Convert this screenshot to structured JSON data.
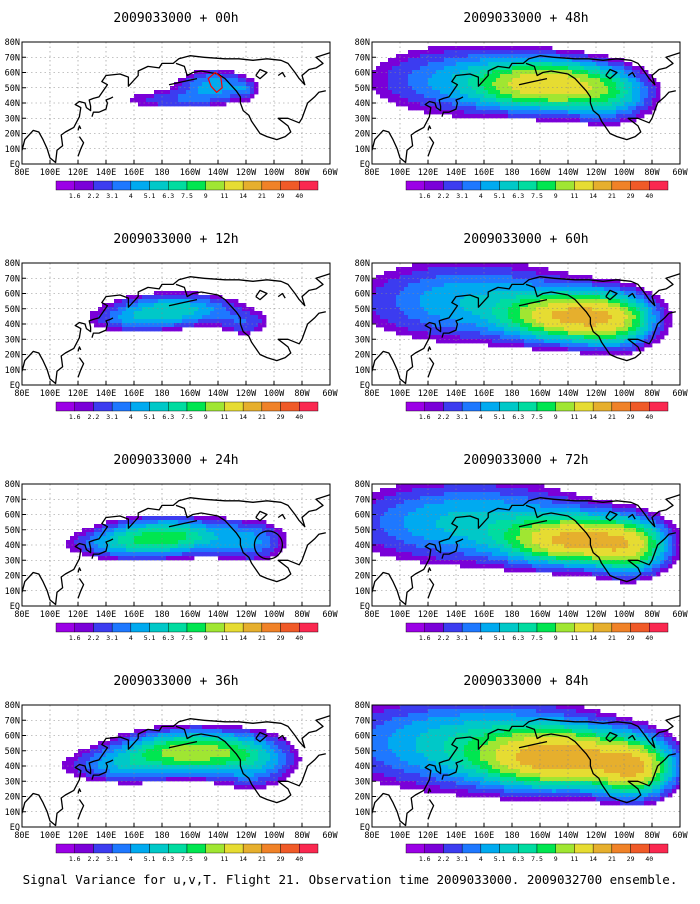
{
  "chart_data": {
    "type": "heatmap",
    "caption": "Signal Variance for u,v,T. Flight 21. Observation time 2009033000. 2009032700 ensemble.",
    "x_tick_labels": [
      "80E",
      "100E",
      "120E",
      "140E",
      "160E",
      "180",
      "160W",
      "140W",
      "120W",
      "100W",
      "80W",
      "60W"
    ],
    "y_tick_labels": [
      "EQ",
      "10N",
      "20N",
      "30N",
      "40N",
      "50N",
      "60N",
      "70N",
      "80N"
    ],
    "colorbar_levels": [
      "1.6",
      "2.2",
      "3.1",
      "4",
      "5.1",
      "6.3",
      "7.5",
      "9",
      "11",
      "14",
      "21",
      "29",
      "40"
    ],
    "colorbar_colors": [
      "#9b00e6",
      "#7a00d8",
      "#3c3cf0",
      "#1e78ff",
      "#00aaf0",
      "#00c8c8",
      "#00dca0",
      "#00e650",
      "#a0e632",
      "#e6dc32",
      "#e6af2d",
      "#f08228",
      "#f05a28",
      "#fa2850"
    ],
    "colors": {
      "land_outline": "#000000",
      "grid": "#888888",
      "marker_red": "#ff0000"
    },
    "panels": [
      {
        "title": "2009033000 + 00h",
        "lead_hours": 0,
        "col": 0,
        "row": 0,
        "blobs": [
          {
            "lon": 218,
            "lat": 52,
            "sx": 18,
            "sy": 7,
            "amp": 4.5
          },
          {
            "lon": 185,
            "lat": 42,
            "sx": 28,
            "sy": 5,
            "amp": 2.6
          },
          {
            "lon": 240,
            "lat": 48,
            "sx": 6,
            "sy": 4,
            "amp": 1.9
          }
        ]
      },
      {
        "title": "2009033000 + 12h",
        "lead_hours": 12,
        "col": 0,
        "row": 1,
        "blobs": [
          {
            "lon": 190,
            "lat": 50,
            "sx": 30,
            "sy": 7,
            "amp": 5.5
          },
          {
            "lon": 160,
            "lat": 42,
            "sx": 25,
            "sy": 6,
            "amp": 2.8
          },
          {
            "lon": 240,
            "lat": 40,
            "sx": 14,
            "sy": 6,
            "amp": 2.5
          }
        ]
      },
      {
        "title": "2009033000 + 24h",
        "lead_hours": 24,
        "col": 0,
        "row": 2,
        "blobs": [
          {
            "lon": 185,
            "lat": 46,
            "sx": 30,
            "sy": 8,
            "amp": 7.5
          },
          {
            "lon": 150,
            "lat": 40,
            "sx": 28,
            "sy": 7,
            "amp": 3.2
          },
          {
            "lon": 245,
            "lat": 42,
            "sx": 18,
            "sy": 10,
            "amp": 3.5
          }
        ]
      },
      {
        "title": "2009033000 + 36h",
        "lead_hours": 36,
        "col": 0,
        "row": 3,
        "blobs": [
          {
            "lon": 200,
            "lat": 50,
            "sx": 32,
            "sy": 9,
            "amp": 9.5
          },
          {
            "lon": 150,
            "lat": 40,
            "sx": 30,
            "sy": 8,
            "amp": 3.8
          },
          {
            "lon": 245,
            "lat": 42,
            "sx": 22,
            "sy": 12,
            "amp": 4.0
          }
        ]
      },
      {
        "title": "2009033000 + 48h",
        "lead_hours": 48,
        "col": 1,
        "row": 0,
        "blobs": [
          {
            "lon": 205,
            "lat": 52,
            "sx": 30,
            "sy": 10,
            "amp": 11
          },
          {
            "lon": 150,
            "lat": 55,
            "sx": 50,
            "sy": 16,
            "amp": 4.5
          },
          {
            "lon": 250,
            "lat": 45,
            "sx": 22,
            "sy": 12,
            "amp": 5
          }
        ]
      },
      {
        "title": "2009033000 + 60h",
        "lead_hours": 60,
        "col": 1,
        "row": 1,
        "blobs": [
          {
            "lon": 220,
            "lat": 45,
            "sx": 28,
            "sy": 10,
            "amp": 12
          },
          {
            "lon": 150,
            "lat": 55,
            "sx": 55,
            "sy": 18,
            "amp": 5
          },
          {
            "lon": 255,
            "lat": 42,
            "sx": 20,
            "sy": 12,
            "amp": 7
          }
        ]
      },
      {
        "title": "2009033000 + 72h",
        "lead_hours": 72,
        "col": 1,
        "row": 2,
        "blobs": [
          {
            "lon": 225,
            "lat": 43,
            "sx": 30,
            "sy": 10,
            "amp": 13
          },
          {
            "lon": 150,
            "lat": 55,
            "sx": 60,
            "sy": 18,
            "amp": 5.5
          },
          {
            "lon": 265,
            "lat": 38,
            "sx": 18,
            "sy": 12,
            "amp": 8
          }
        ]
      },
      {
        "title": "2009033000 + 84h",
        "lead_hours": 84,
        "col": 1,
        "row": 3,
        "blobs": [
          {
            "lon": 215,
            "lat": 45,
            "sx": 35,
            "sy": 12,
            "amp": 14
          },
          {
            "lon": 150,
            "lat": 55,
            "sx": 65,
            "sy": 20,
            "amp": 6
          },
          {
            "lon": 268,
            "lat": 38,
            "sx": 18,
            "sy": 12,
            "amp": 11
          }
        ]
      }
    ]
  }
}
